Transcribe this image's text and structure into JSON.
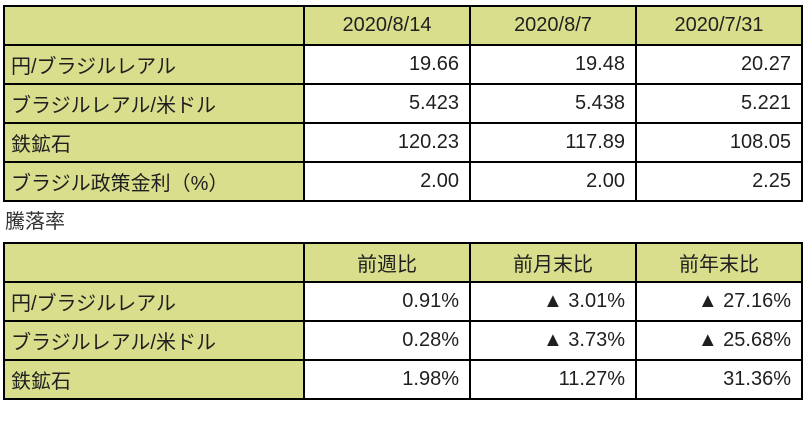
{
  "colors": {
    "header_bg": "#d8de8c",
    "border": "#000000",
    "text": "#1f1f1f",
    "section_label_text": "#333333",
    "value_bg": "#ffffff"
  },
  "section_label": "騰落率",
  "chart_data": [
    {
      "type": "table",
      "title": "",
      "columns": [
        "",
        "2020/8/14",
        "2020/8/7",
        "2020/7/31"
      ],
      "rows": [
        {
          "label": "円/ブラジルレアル",
          "values": [
            "19.66",
            "19.48",
            "20.27"
          ]
        },
        {
          "label": "ブラジルレアル/米ドル",
          "values": [
            "5.423",
            "5.438",
            "5.221"
          ]
        },
        {
          "label": "鉄鉱石",
          "values": [
            "120.23",
            "117.89",
            "108.05"
          ]
        },
        {
          "label": "ブラジル政策金利（%）",
          "values": [
            "2.00",
            "2.00",
            "2.25"
          ]
        }
      ]
    },
    {
      "type": "table",
      "title": "騰落率",
      "columns": [
        "",
        "前週比",
        "前月末比",
        "前年末比"
      ],
      "rows": [
        {
          "label": "円/ブラジルレアル",
          "values": [
            "0.91%",
            "▲ 3.01%",
            "▲ 27.16%"
          ]
        },
        {
          "label": "ブラジルレアル/米ドル",
          "values": [
            "0.28%",
            "▲ 3.73%",
            "▲ 25.68%"
          ]
        },
        {
          "label": "鉄鉱石",
          "values": [
            "1.98%",
            "11.27%",
            "31.36%"
          ]
        }
      ]
    }
  ]
}
